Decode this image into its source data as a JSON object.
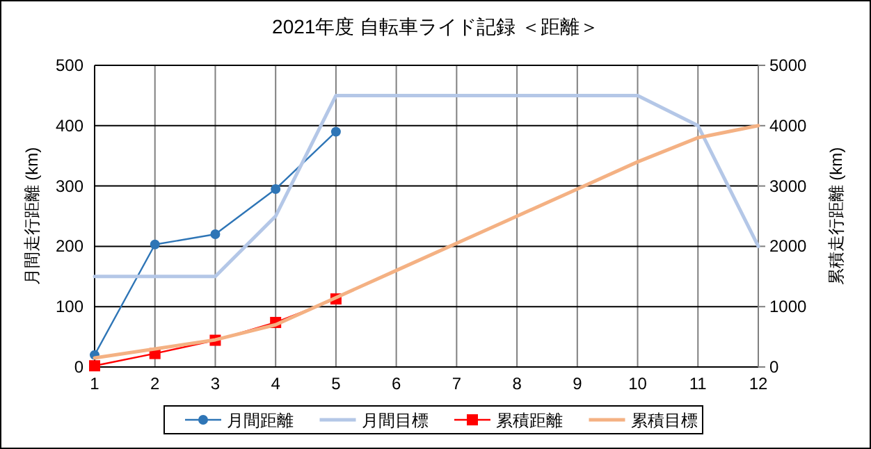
{
  "chart_data": {
    "type": "line",
    "title": "2021年度  自転車ライド記録 ＜距離＞",
    "ylabel": "月間走行距離 (km)",
    "y2label": "累積走行距離 (km)",
    "x": [
      1,
      2,
      3,
      4,
      5,
      6,
      7,
      8,
      9,
      10,
      11,
      12
    ],
    "xlim": [
      1,
      12
    ],
    "xticks": [
      1,
      2,
      3,
      4,
      5,
      6,
      7,
      8,
      9,
      10,
      11,
      12
    ],
    "ylim": [
      0,
      500
    ],
    "yticks": [
      0,
      100,
      200,
      300,
      400,
      500
    ],
    "y2lim": [
      0,
      5000
    ],
    "y2ticks": [
      0,
      1000,
      2000,
      3000,
      4000,
      5000
    ],
    "grid": true,
    "legend": "bottom",
    "series": [
      {
        "name": "月間距離",
        "color": "#2e75b6",
        "marker": "circle",
        "values": [
          20,
          203,
          220,
          295,
          390,
          null,
          null,
          null,
          null,
          null,
          null,
          null
        ]
      },
      {
        "name": "月間目標",
        "color": "#b4c7e7",
        "marker": "none",
        "values": [
          150,
          150,
          150,
          250,
          450,
          450,
          450,
          450,
          450,
          450,
          400,
          200
        ]
      },
      {
        "name": "累積距離",
        "color": "#ff0000",
        "marker": "square",
        "axis": "y2",
        "values": [
          20,
          223,
          443,
          738,
          1128,
          null,
          null,
          null,
          null,
          null,
          null,
          null
        ]
      },
      {
        "name": "累積目標",
        "color": "#f4b183",
        "marker": "none",
        "axis": "y2",
        "values": [
          150,
          300,
          450,
          700,
          1150,
          1600,
          2050,
          2500,
          2950,
          3400,
          3800,
          4000
        ]
      }
    ]
  }
}
